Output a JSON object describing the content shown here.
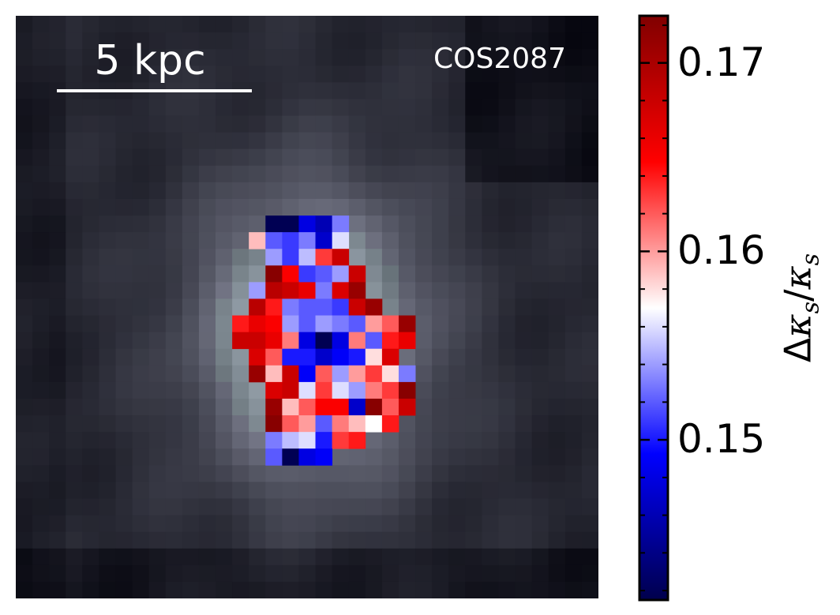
{
  "chart_data": {
    "type": "heatmap",
    "title": "",
    "annotations": {
      "object_name": "COS2087",
      "scale_bar_label": "5 kpc"
    },
    "colorbar": {
      "colormap": "seismic",
      "label_prefix": "Δ",
      "label_symbol": "κ",
      "label_sub": "s",
      "label_full": "Δκs/κs",
      "vmin": 0.1415,
      "vmax": 0.1725,
      "ticks": [
        {
          "value": 0.17,
          "label": "0.17"
        },
        {
          "value": 0.16,
          "label": "0.16"
        },
        {
          "value": 0.15,
          "label": "0.15"
        }
      ],
      "minor_step": 0.002
    },
    "grid": {
      "columns": 35,
      "rows": 35,
      "background": "dark grey galaxy light map, brighter near center",
      "masked_value_colors_region": "central galaxy pixels only"
    },
    "pixels": [
      {
        "row": 12,
        "col_start": 15,
        "values": [
          0.1418,
          0.1418,
          0.148,
          0.146,
          0.153
        ]
      },
      {
        "row": 13,
        "col_start": 14,
        "values": [
          0.159,
          0.152,
          0.151,
          0.153,
          0.147,
          0.156
        ]
      },
      {
        "row": 14,
        "col_start": 15,
        "values": [
          0.154,
          0.151,
          0.155,
          0.163,
          0.168
        ]
      },
      {
        "row": 15,
        "col_start": 15,
        "values": [
          0.172,
          0.165,
          0.151,
          0.152,
          0.154,
          0.168
        ]
      },
      {
        "row": 16,
        "col_start": 14,
        "values": [
          0.154,
          0.169,
          0.168,
          0.166,
          0.153,
          0.167,
          0.171
        ]
      },
      {
        "row": 17,
        "col_start": 14,
        "values": [
          0.169,
          0.164,
          0.153,
          0.152,
          0.152,
          0.151,
          0.168,
          0.171
        ]
      },
      {
        "row": 18,
        "col_start": 13,
        "values": [
          0.164,
          0.166,
          0.165,
          0.154,
          0.152,
          0.154,
          0.153,
          0.152,
          0.16,
          0.162,
          0.171
        ]
      },
      {
        "row": 19,
        "col_start": 13,
        "values": [
          0.168,
          0.168,
          0.166,
          0.161,
          0.148,
          0.1418,
          0.148,
          0.161,
          0.152,
          0.164,
          0.166
        ]
      },
      {
        "row": 20,
        "col_start": 14,
        "values": [
          0.167,
          0.162,
          0.15,
          0.15,
          0.147,
          0.149,
          0.15,
          0.158,
          0.167
        ]
      },
      {
        "row": 21,
        "col_start": 14,
        "values": [
          0.171,
          0.159,
          0.168,
          0.149,
          0.162,
          0.154,
          0.16,
          0.163,
          0.158,
          0.153
        ]
      },
      {
        "row": 22,
        "col_start": 15,
        "values": [
          0.167,
          0.168,
          0.156,
          0.163,
          0.156,
          0.154,
          0.161,
          0.163,
          0.172
        ]
      },
      {
        "row": 23,
        "col_start": 15,
        "values": [
          0.171,
          0.159,
          0.162,
          0.165,
          0.165,
          0.147,
          0.172,
          0.162,
          0.168
        ]
      },
      {
        "row": 24,
        "col_start": 15,
        "values": [
          0.172,
          0.162,
          0.16,
          0.152,
          0.161,
          0.159,
          0.157,
          0.164
        ]
      },
      {
        "row": 25,
        "col_start": 15,
        "values": [
          0.153,
          0.155,
          0.156,
          0.15,
          0.163,
          0.164
        ]
      },
      {
        "row": 26,
        "col_start": 15,
        "values": [
          0.152,
          0.1418,
          0.148,
          0.149
        ]
      }
    ]
  }
}
